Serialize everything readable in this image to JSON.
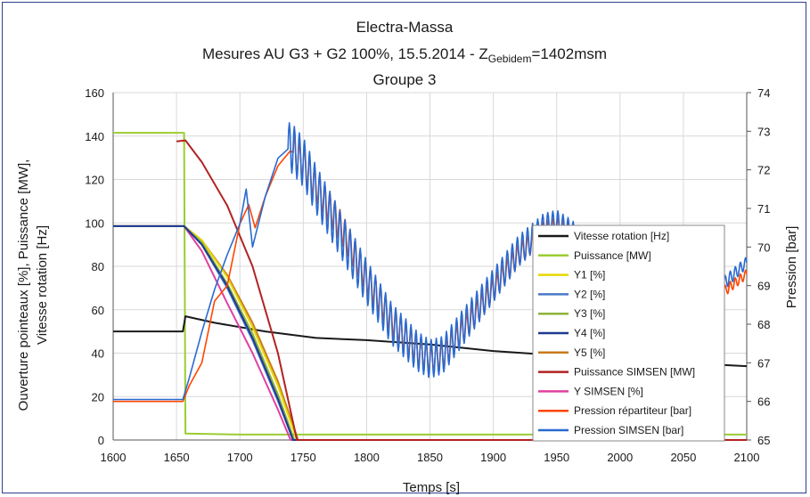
{
  "chart_data": {
    "type": "line",
    "title": "Electra-Massa",
    "subtitle_prefix": "Mesures AU G3 + G2 100%, 15.5.2014 - Z",
    "subtitle_sub": "Gebidem",
    "subtitle_suffix": "=1402msm",
    "group_label": "Groupe 3",
    "xlabel": "Temps [s]",
    "ylabel_left_1": "Ouverture pointeaux [%], Puissance [MW],",
    "ylabel_left_2": "Vitesse rotation [Hz]",
    "ylabel_right": "Pression [bar]",
    "xlim": [
      1600,
      2100
    ],
    "ylim_left": [
      0,
      160
    ],
    "ylim_right": [
      65,
      74
    ],
    "x_ticks": [
      "1600",
      "1650",
      "1700",
      "1750",
      "1800",
      "1850",
      "1900",
      "1950",
      "2000",
      "2050",
      "2100"
    ],
    "y_left_ticks": [
      "0",
      "20",
      "40",
      "60",
      "80",
      "100",
      "120",
      "140",
      "160"
    ],
    "y_right_ticks": [
      "65",
      "66",
      "67",
      "68",
      "69",
      "70",
      "71",
      "72",
      "73",
      "74"
    ],
    "grid": true,
    "legend_position": "right",
    "series": [
      {
        "name": "Vitesse rotation [Hz]",
        "color": "#1a1a1a",
        "axis": "left",
        "points": [
          [
            1600,
            50
          ],
          [
            1655,
            50
          ],
          [
            1657,
            57
          ],
          [
            1680,
            54
          ],
          [
            1720,
            50
          ],
          [
            1760,
            47
          ],
          [
            1800,
            46
          ],
          [
            1850,
            44
          ],
          [
            1900,
            41
          ],
          [
            1950,
            39
          ],
          [
            2000,
            37
          ],
          [
            2050,
            35.5
          ],
          [
            2100,
            34
          ]
        ]
      },
      {
        "name": "Puissance [MW]",
        "color": "#9acd32",
        "axis": "left",
        "points": [
          [
            1600,
            141.5
          ],
          [
            1656,
            141.5
          ],
          [
            1657,
            3
          ],
          [
            1700,
            2.5
          ],
          [
            2100,
            2.5
          ]
        ]
      },
      {
        "name": "Y1 [%]",
        "color": "#e6d800",
        "axis": "left",
        "points": [
          [
            1600,
            98.5
          ],
          [
            1656,
            98.5
          ],
          [
            1670,
            92
          ],
          [
            1690,
            75
          ],
          [
            1710,
            52
          ],
          [
            1730,
            25
          ],
          [
            1745,
            0
          ],
          [
            2100,
            0
          ]
        ]
      },
      {
        "name": "Y2 [%]",
        "color": "#4a78c8",
        "axis": "left",
        "points": [
          [
            1600,
            98.5
          ],
          [
            1656,
            98.5
          ],
          [
            1670,
            90
          ],
          [
            1690,
            70
          ],
          [
            1710,
            46
          ],
          [
            1730,
            18
          ],
          [
            1742,
            0
          ],
          [
            2100,
            0
          ]
        ]
      },
      {
        "name": "Y3 [%]",
        "color": "#8db33a",
        "axis": "left",
        "points": [
          [
            1600,
            98.5
          ],
          [
            1656,
            98.5
          ],
          [
            1670,
            91
          ],
          [
            1690,
            72
          ],
          [
            1710,
            49
          ],
          [
            1730,
            21
          ],
          [
            1743,
            0
          ],
          [
            2100,
            0
          ]
        ]
      },
      {
        "name": "Y4 [%]",
        "color": "#1f3a93",
        "axis": "left",
        "points": [
          [
            1600,
            98.5
          ],
          [
            1656,
            98.5
          ],
          [
            1670,
            90
          ],
          [
            1690,
            71
          ],
          [
            1710,
            47
          ],
          [
            1730,
            19
          ],
          [
            1742,
            0
          ],
          [
            2100,
            0
          ]
        ]
      },
      {
        "name": "Y5 [%]",
        "color": "#c87a1e",
        "axis": "left",
        "points": [
          [
            1600,
            98.5
          ],
          [
            1656,
            98.5
          ],
          [
            1670,
            92
          ],
          [
            1690,
            76
          ],
          [
            1710,
            54
          ],
          [
            1730,
            27
          ],
          [
            1746,
            0
          ],
          [
            2100,
            0
          ]
        ]
      },
      {
        "name": "Puissance SIMSEN [MW]",
        "color": "#b22222",
        "axis": "left",
        "points": [
          [
            1650,
            137.5
          ],
          [
            1657,
            138
          ],
          [
            1670,
            128
          ],
          [
            1690,
            108
          ],
          [
            1710,
            80
          ],
          [
            1730,
            40
          ],
          [
            1745,
            0
          ],
          [
            2100,
            0
          ]
        ]
      },
      {
        "name": "Y SIMSEN [%]",
        "color": "#e040a0",
        "axis": "left",
        "points": [
          [
            1600,
            98.5
          ],
          [
            1656,
            98.5
          ],
          [
            1670,
            87
          ],
          [
            1690,
            63
          ],
          [
            1710,
            40
          ],
          [
            1730,
            14
          ],
          [
            1740,
            0
          ],
          [
            2100,
            0
          ]
        ]
      },
      {
        "name": "Pression répartiteur [bar]",
        "color": "#ff4500",
        "axis": "right",
        "oscillate": {
          "start": 1742,
          "period": 4,
          "amp_start": 0.45,
          "amp_end": 0.12
        },
        "points": [
          [
            1600,
            66.0
          ],
          [
            1655,
            66.0
          ],
          [
            1660,
            66.4
          ],
          [
            1670,
            67.0
          ],
          [
            1680,
            68.6
          ],
          [
            1690,
            69.0
          ],
          [
            1700,
            70.6
          ],
          [
            1707,
            71.1
          ],
          [
            1712,
            70.5
          ],
          [
            1720,
            71.3
          ],
          [
            1730,
            72.1
          ],
          [
            1740,
            72.5
          ],
          [
            1750,
            72.2
          ],
          [
            1760,
            71.6
          ],
          [
            1780,
            70.5
          ],
          [
            1800,
            69.2
          ],
          [
            1820,
            68.1
          ],
          [
            1840,
            67.3
          ],
          [
            1850,
            67.1
          ],
          [
            1860,
            67.2
          ],
          [
            1880,
            68.0
          ],
          [
            1900,
            68.9
          ],
          [
            1920,
            69.8
          ],
          [
            1940,
            70.4
          ],
          [
            1950,
            70.5
          ],
          [
            1960,
            70.4
          ],
          [
            1980,
            69.9
          ],
          [
            2000,
            69.2
          ],
          [
            2020,
            68.7
          ],
          [
            2040,
            68.5
          ],
          [
            2060,
            68.5
          ],
          [
            2080,
            68.8
          ],
          [
            2100,
            69.3
          ]
        ]
      },
      {
        "name": "Pression SIMSEN [bar]",
        "color": "#2a6ad0",
        "axis": "right",
        "oscillate": {
          "start": 1738,
          "period": 4,
          "amp_start": 0.65,
          "amp_end": 0.15
        },
        "points": [
          [
            1600,
            66.05
          ],
          [
            1655,
            66.05
          ],
          [
            1660,
            66.6
          ],
          [
            1670,
            67.8
          ],
          [
            1680,
            68.9
          ],
          [
            1690,
            69.8
          ],
          [
            1700,
            70.6
          ],
          [
            1705,
            71.5
          ],
          [
            1710,
            70.0
          ],
          [
            1720,
            71.3
          ],
          [
            1730,
            72.3
          ],
          [
            1740,
            72.6
          ],
          [
            1750,
            72.2
          ],
          [
            1760,
            71.5
          ],
          [
            1780,
            70.3
          ],
          [
            1800,
            69.1
          ],
          [
            1820,
            68.0
          ],
          [
            1840,
            67.3
          ],
          [
            1850,
            67.1
          ],
          [
            1860,
            67.2
          ],
          [
            1880,
            68.1
          ],
          [
            1900,
            69.0
          ],
          [
            1920,
            69.9
          ],
          [
            1940,
            70.5
          ],
          [
            1950,
            70.6
          ],
          [
            1960,
            70.4
          ],
          [
            1980,
            69.9
          ],
          [
            2000,
            69.2
          ],
          [
            2020,
            68.7
          ],
          [
            2040,
            68.5
          ],
          [
            2060,
            68.6
          ],
          [
            2080,
            69.0
          ],
          [
            2100,
            69.6
          ]
        ]
      }
    ]
  }
}
